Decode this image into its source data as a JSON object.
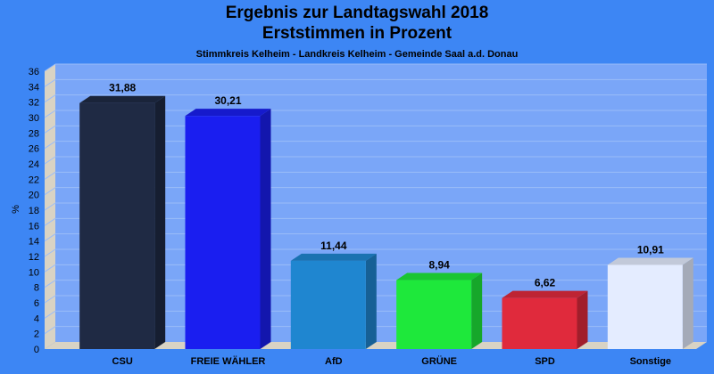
{
  "chart_data": {
    "type": "bar",
    "title": "Ergebnis zur Landtagswahl 2018",
    "subtitle": "Erststimmen in Prozent",
    "caption": "Stimmkreis Kelheim - Landkreis Kelheim - Gemeinde Saal a.d. Donau",
    "ylabel": "%",
    "xlabel": "",
    "ylim": [
      0,
      36
    ],
    "yticks": [
      0,
      2,
      4,
      6,
      8,
      10,
      12,
      14,
      16,
      18,
      20,
      22,
      24,
      26,
      28,
      30,
      32,
      34,
      36
    ],
    "grid": true,
    "categories": [
      "CSU",
      "FREIE WÄHLER",
      "AfD",
      "GRÜNE",
      "SPD",
      "Sonstige"
    ],
    "values": [
      31.88,
      30.21,
      11.44,
      8.94,
      6.62,
      10.91
    ],
    "value_labels": [
      "31,88",
      "30,21",
      "11,44",
      "8,94",
      "6,62",
      "10,91"
    ],
    "colors": [
      "#1f2a44",
      "#1a1ef0",
      "#1f86d0",
      "#1ee83b",
      "#e02a3c",
      "#e4ecff"
    ]
  }
}
